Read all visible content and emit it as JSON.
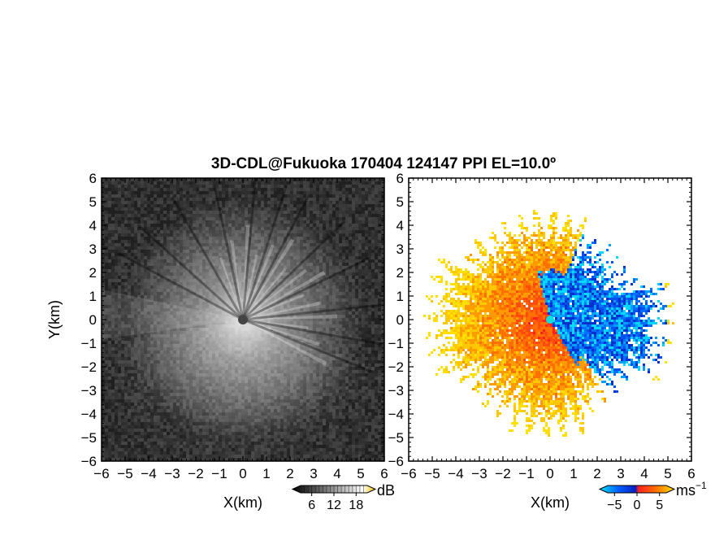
{
  "title": "3D-CDL@Fukuoka 170404 124147 PPI EL=10.0º",
  "chart_data": [
    {
      "type": "heatmap",
      "panel": "left",
      "quantity": "intensity",
      "xlabel": "X(km)",
      "ylabel": "Y(km)",
      "xlim": [
        -6,
        6
      ],
      "ylim": [
        -6,
        6
      ],
      "xticks": [
        "−6",
        "−5",
        "−4",
        "−3",
        "−2",
        "−1",
        "0",
        "1",
        "2",
        "3",
        "4",
        "5",
        "6"
      ],
      "yticks": [
        "6",
        "5",
        "4",
        "3",
        "2",
        "1",
        "0",
        "−1",
        "−2",
        "−3",
        "−4",
        "−5",
        "−6"
      ],
      "colormap": "grayscale",
      "colorbar": {
        "unit": "dB",
        "range": [
          3,
          21
        ],
        "tick_values": [
          6,
          12,
          18
        ],
        "tick_labels": [
          "6",
          "12",
          "18"
        ],
        "colors": [
          "#000000",
          "#ffffff",
          "#f0c000"
        ]
      },
      "radar_center": [
        0,
        0
      ],
      "bright_sector_bearings_deg": [
        -20,
        -8,
        3,
        12,
        22,
        32,
        40,
        52,
        60,
        68,
        78,
        88,
        97,
        108,
        118
      ]
    },
    {
      "type": "heatmap",
      "panel": "right",
      "quantity": "radial velocity",
      "xlabel": "X(km)",
      "ylabel": "",
      "xlim": [
        -6,
        6
      ],
      "ylim": [
        -6,
        6
      ],
      "xticks": [
        "−6",
        "−5",
        "−4",
        "−3",
        "−2",
        "−1",
        "0",
        "1",
        "2",
        "3",
        "4",
        "5",
        "6"
      ],
      "yticks": [
        "6",
        "5",
        "4",
        "3",
        "2",
        "1",
        "0",
        "−1",
        "−2",
        "−3",
        "−4",
        "−5",
        "−6"
      ],
      "colormap": "diverging blue-red-yellow",
      "colorbar": {
        "unit": "ms",
        "unit_exponent": "−1",
        "range": [
          -6.5,
          6.5
        ],
        "tick_values": [
          -5,
          0,
          5
        ],
        "tick_labels": [
          "−5",
          "0",
          "5"
        ],
        "colors": [
          "#00e0ff",
          "#0060ff",
          "#0020c0",
          "#ff2020",
          "#ff7000",
          "#ffe000"
        ]
      },
      "radar_center": [
        0,
        0
      ],
      "velocity_regions": [
        {
          "sign": "negative",
          "bearing_deg": [
            -15,
            150
          ],
          "speed_range": [
            -6,
            -1
          ]
        },
        {
          "sign": "positive",
          "bearing_deg": [
            150,
            345
          ],
          "speed_range": [
            1,
            6
          ]
        }
      ]
    }
  ]
}
